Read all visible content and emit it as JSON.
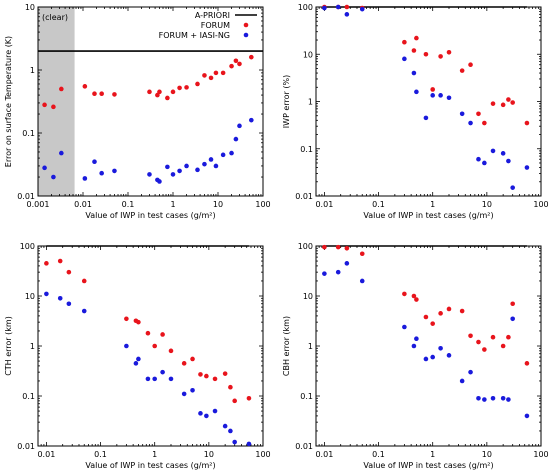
{
  "figure": {
    "colors": {
      "apriori": "#000000",
      "forum": "#e8141c",
      "forum_iasi": "#1a1adc",
      "shade": "#c8c8c8"
    }
  },
  "chart_data": [
    {
      "type": "scatter",
      "xlabel": "Value of IWP in test cases (g/m²)",
      "ylabel": "Error on surface Temperature (K)",
      "xscale": "log",
      "yscale": "log",
      "xlim": [
        0.001,
        100
      ],
      "ylim": [
        0.01,
        10
      ],
      "xticks": [
        "0.001",
        "0.01",
        "0.1",
        "1",
        "10",
        "100"
      ],
      "yticks": [
        "0.01",
        "0.1",
        "1",
        "10"
      ],
      "shaded_region": {
        "x": [
          0.001,
          0.0065
        ],
        "label": "(clear)"
      },
      "legend": {
        "position": "top-right",
        "entries": [
          "A-PRIORI",
          "FORUM",
          "FORUM + IASI-NG"
        ]
      },
      "series": [
        {
          "name": "A-PRIORI",
          "kind": "line",
          "x": [
            0.001,
            100
          ],
          "y": [
            2,
            2
          ]
        },
        {
          "name": "FORUM",
          "kind": "points",
          "x": [
            0.0014,
            0.0022,
            0.0033,
            0.011,
            0.018,
            0.026,
            0.05,
            0.3,
            0.45,
            0.5,
            0.75,
            1.0,
            1.4,
            2.0,
            3.5,
            5.0,
            7.0,
            9.0,
            13.0,
            20.0,
            25.0,
            30.0,
            55.0
          ],
          "y": [
            0.28,
            0.26,
            0.5,
            0.55,
            0.42,
            0.42,
            0.41,
            0.45,
            0.4,
            0.45,
            0.36,
            0.45,
            0.52,
            0.53,
            0.6,
            0.82,
            0.75,
            0.9,
            0.9,
            1.15,
            1.4,
            1.25,
            1.6
          ]
        },
        {
          "name": "FORUM + IASI-NG",
          "kind": "points",
          "x": [
            0.0014,
            0.0022,
            0.0033,
            0.011,
            0.018,
            0.026,
            0.05,
            0.3,
            0.45,
            0.5,
            0.75,
            1.0,
            1.4,
            2.0,
            3.5,
            5.0,
            7.0,
            9.0,
            13.0,
            20.0,
            25.0,
            30.0,
            55.0
          ],
          "y": [
            0.028,
            0.02,
            0.048,
            0.019,
            0.035,
            0.023,
            0.025,
            0.022,
            0.018,
            0.017,
            0.029,
            0.022,
            0.025,
            0.03,
            0.026,
            0.032,
            0.038,
            0.03,
            0.045,
            0.048,
            0.08,
            0.13,
            0.16
          ]
        }
      ]
    },
    {
      "type": "scatter",
      "xlabel": "Value of IWP in test cases (g/m²)",
      "ylabel": "IWP error (%)",
      "xscale": "log",
      "yscale": "log",
      "xlim": [
        0.007,
        100
      ],
      "ylim": [
        0.01,
        100
      ],
      "xticks": [
        "0.01",
        "0.1",
        "1",
        "10",
        "100"
      ],
      "yticks": [
        "0.01",
        "0.1",
        "1",
        "10",
        "100"
      ],
      "series": [
        {
          "name": "A-PRIORI",
          "kind": "line",
          "x": [
            0.01,
            55
          ],
          "y": [
            100,
            100
          ]
        },
        {
          "name": "FORUM",
          "kind": "points",
          "x": [
            0.01,
            0.018,
            0.026,
            0.05,
            0.3,
            0.45,
            0.5,
            0.75,
            1.0,
            1.4,
            2.0,
            3.5,
            5.0,
            7.0,
            9.0,
            13.0,
            20.0,
            25.0,
            30.0,
            55.0
          ],
          "y": [
            100,
            100,
            100,
            95,
            18,
            12,
            22,
            10,
            1.8,
            9,
            11,
            4.5,
            6,
            0.55,
            0.35,
            0.9,
            0.85,
            1.1,
            0.95,
            0.35
          ]
        },
        {
          "name": "FORUM + IASI-NG",
          "kind": "points",
          "x": [
            0.01,
            0.018,
            0.026,
            0.05,
            0.3,
            0.45,
            0.5,
            0.75,
            1.0,
            1.4,
            2.0,
            3.5,
            5.0,
            7.0,
            9.0,
            13.0,
            20.0,
            25.0,
            30.0,
            55.0
          ],
          "y": [
            95,
            100,
            70,
            90,
            8,
            4,
            1.6,
            0.45,
            1.35,
            1.35,
            1.2,
            0.55,
            0.35,
            0.06,
            0.05,
            0.09,
            0.08,
            0.055,
            0.015,
            0.04
          ]
        }
      ]
    },
    {
      "type": "scatter",
      "xlabel": "Value of IWP in test cases (g/m²)",
      "ylabel": "CTH error (km)",
      "xscale": "log",
      "yscale": "log",
      "xlim": [
        0.007,
        100
      ],
      "ylim": [
        0.01,
        100
      ],
      "xticks": [
        "0.01",
        "0.1",
        "1",
        "10",
        "100"
      ],
      "yticks": [
        "0.01",
        "0.1",
        "1",
        "10",
        "100"
      ],
      "series": [
        {
          "name": "A-PRIORI",
          "kind": "line",
          "x": [
            0.01,
            55
          ],
          "y": [
            100,
            100
          ]
        },
        {
          "name": "FORUM",
          "kind": "points",
          "x": [
            0.01,
            0.018,
            0.026,
            0.05,
            0.3,
            0.45,
            0.5,
            0.75,
            1.0,
            1.4,
            2.0,
            3.5,
            5.0,
            7.0,
            9.0,
            13.0,
            20.0,
            25.0,
            30.0,
            55.0
          ],
          "y": [
            45,
            50,
            30,
            20,
            3.5,
            3.2,
            3.0,
            1.8,
            1.0,
            1.7,
            0.8,
            0.45,
            0.55,
            0.27,
            0.25,
            0.22,
            0.28,
            0.15,
            0.08,
            0.09
          ]
        },
        {
          "name": "FORUM + IASI-NG",
          "kind": "points",
          "x": [
            0.01,
            0.018,
            0.026,
            0.05,
            0.3,
            0.45,
            0.5,
            0.75,
            1.0,
            1.4,
            2.0,
            3.5,
            5.0,
            7.0,
            9.0,
            13.0,
            20.0,
            25.0,
            30.0,
            55.0
          ],
          "y": [
            11,
            9,
            7,
            5,
            1.0,
            0.45,
            0.55,
            0.22,
            0.22,
            0.3,
            0.22,
            0.11,
            0.13,
            0.045,
            0.04,
            0.05,
            0.025,
            0.02,
            0.012,
            0.011
          ]
        }
      ]
    },
    {
      "type": "scatter",
      "xlabel": "Value of IWP in test cases (g/m²)",
      "ylabel": "CBH error (km)",
      "xscale": "log",
      "yscale": "log",
      "xlim": [
        0.007,
        100
      ],
      "ylim": [
        0.01,
        100
      ],
      "xticks": [
        "0.01",
        "0.1",
        "1",
        "10",
        "100"
      ],
      "yticks": [
        "0.01",
        "0.1",
        "1",
        "10",
        "100"
      ],
      "series": [
        {
          "name": "A-PRIORI",
          "kind": "line",
          "x": [
            0.01,
            55
          ],
          "y": [
            100,
            100
          ]
        },
        {
          "name": "FORUM",
          "kind": "points",
          "x": [
            0.01,
            0.018,
            0.026,
            0.05,
            0.3,
            0.45,
            0.5,
            0.75,
            1.0,
            1.4,
            2.0,
            3.5,
            5.0,
            7.0,
            9.0,
            13.0,
            20.0,
            25.0,
            30.0,
            55.0
          ],
          "y": [
            95,
            95,
            90,
            70,
            11,
            10,
            8.5,
            3.8,
            2.8,
            4.5,
            5.5,
            5.0,
            1.6,
            1.2,
            0.85,
            1.5,
            1.0,
            1.5,
            7.0,
            0.45
          ]
        },
        {
          "name": "FORUM + IASI-NG",
          "kind": "points",
          "x": [
            0.01,
            0.018,
            0.026,
            0.05,
            0.3,
            0.45,
            0.5,
            0.75,
            1.0,
            1.4,
            2.0,
            3.5,
            5.0,
            7.0,
            9.0,
            13.0,
            20.0,
            25.0,
            30.0,
            55.0
          ],
          "y": [
            28,
            30,
            45,
            20,
            2.4,
            1.0,
            1.4,
            0.55,
            0.6,
            0.9,
            0.65,
            0.2,
            0.3,
            0.09,
            0.085,
            0.09,
            0.09,
            0.085,
            3.5,
            0.04
          ]
        }
      ]
    }
  ]
}
